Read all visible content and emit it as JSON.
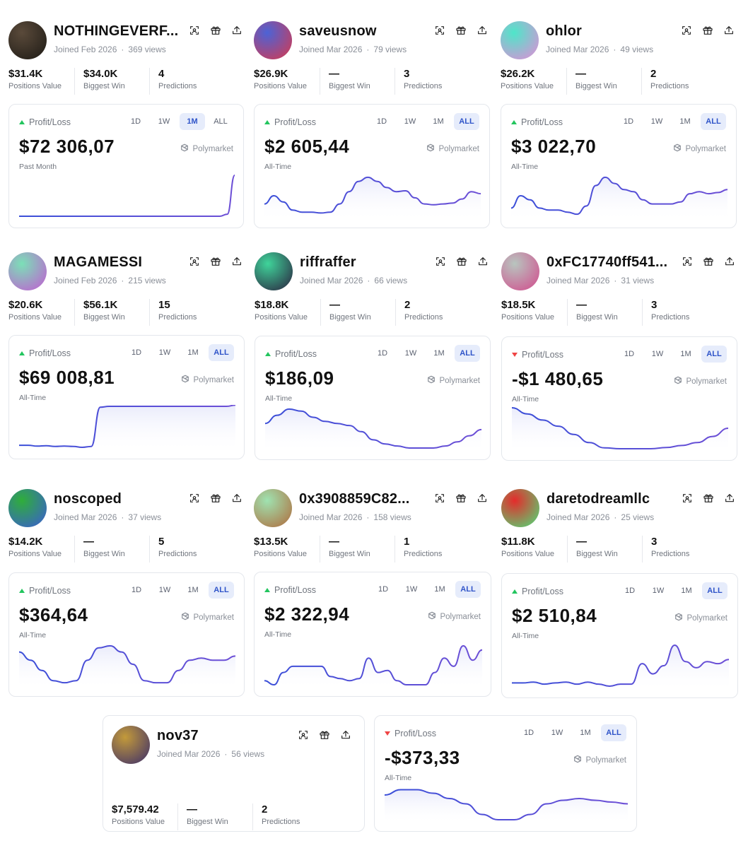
{
  "colors": {
    "line": "#6d4fd6",
    "area": "#e7e9fb",
    "up": "#22c55e",
    "down": "#ef4444",
    "active_tab_bg": "#e6ecfb",
    "active_tab_text": "#2f54c9"
  },
  "tab_labels": [
    "1D",
    "1W",
    "1M",
    "ALL"
  ],
  "profiles": [
    {
      "name": "NOTHINGEVERF...",
      "joined": "Joined Feb 2026",
      "views": "369 views",
      "avatar_colors": [
        "#5a4a3a",
        "#1d1a15"
      ],
      "stats": {
        "positions_value": "$31.4K",
        "positions_label": "Positions Value",
        "biggest_win": "$34.0K",
        "biggest_label": "Biggest Win",
        "predictions": "4",
        "predictions_label": "Predictions"
      },
      "card": {
        "pl_label": "Profit/Loss",
        "trend": "up",
        "amount": "$72 306,07",
        "period": "Past Month",
        "brand": "Polymarket",
        "active_tab": "1M",
        "series": [
          0,
          0,
          0,
          0,
          0,
          0,
          0,
          0,
          0,
          0,
          0,
          0,
          0,
          0,
          0,
          0,
          0,
          0,
          0,
          0,
          0,
          0,
          0,
          0,
          0,
          0,
          0,
          0,
          0.05,
          1
        ],
        "fill": false
      }
    },
    {
      "name": "saveusnow",
      "joined": "Joined Mar 2026",
      "views": "79 views",
      "avatar_colors": [
        "#4c63d6",
        "#d9384c"
      ],
      "stats": {
        "positions_value": "$26.9K",
        "positions_label": "Positions Value",
        "biggest_win": "—",
        "biggest_label": "Biggest Win",
        "predictions": "3",
        "predictions_label": "Predictions"
      },
      "card": {
        "pl_label": "Profit/Loss",
        "trend": "up",
        "amount": "$2 605,44",
        "period": "All-Time",
        "brand": "Polymarket",
        "active_tab": "ALL",
        "series": [
          0.3,
          0.5,
          0.35,
          0.15,
          0.1,
          0.1,
          0.08,
          0.1,
          0.3,
          0.6,
          0.85,
          0.95,
          0.85,
          0.7,
          0.6,
          0.62,
          0.45,
          0.3,
          0.28,
          0.3,
          0.32,
          0.42,
          0.6,
          0.55
        ],
        "fill": true
      }
    },
    {
      "name": "ohlor",
      "joined": "Joined Mar 2026",
      "views": "49 views",
      "avatar_colors": [
        "#4ee6c9",
        "#e58ad7"
      ],
      "stats": {
        "positions_value": "$26.2K",
        "positions_label": "Positions Value",
        "biggest_win": "—",
        "biggest_label": "Biggest Win",
        "predictions": "2",
        "predictions_label": "Predictions"
      },
      "card": {
        "pl_label": "Profit/Loss",
        "trend": "up",
        "amount": "$3 022,70",
        "period": "All-Time",
        "brand": "Polymarket",
        "active_tab": "ALL",
        "series": [
          0.2,
          0.5,
          0.4,
          0.2,
          0.15,
          0.15,
          0.1,
          0.05,
          0.25,
          0.75,
          0.95,
          0.8,
          0.65,
          0.6,
          0.4,
          0.3,
          0.3,
          0.3,
          0.35,
          0.55,
          0.6,
          0.55,
          0.58,
          0.65
        ],
        "fill": true
      }
    },
    {
      "name": "MAGAMESSI",
      "joined": "Joined Feb 2026",
      "views": "215 views",
      "avatar_colors": [
        "#7be0b7",
        "#c35ad3"
      ],
      "stats": {
        "positions_value": "$20.6K",
        "positions_label": "Positions Value",
        "biggest_win": "$56.1K",
        "biggest_label": "Biggest Win",
        "predictions": "15",
        "predictions_label": "Predictions"
      },
      "card": {
        "pl_label": "Profit/Loss",
        "trend": "up",
        "amount": "$69 008,81",
        "period": "All-Time",
        "brand": "Polymarket",
        "active_tab": "ALL",
        "series": [
          0.05,
          0.05,
          0.03,
          0.04,
          0.02,
          0.03,
          0.02,
          0.0,
          0.02,
          0.98,
          1,
          1,
          1,
          1,
          1,
          1,
          1,
          1,
          1,
          1,
          1,
          1,
          1,
          1,
          1.03
        ],
        "fill": true
      }
    },
    {
      "name": "riffraffer",
      "joined": "Joined Mar 2026",
      "views": "66 views",
      "avatar_colors": [
        "#3fd49a",
        "#2a1f3d"
      ],
      "stats": {
        "positions_value": "$18.8K",
        "positions_label": "Positions Value",
        "biggest_win": "—",
        "biggest_label": "Biggest Win",
        "predictions": "2",
        "predictions_label": "Predictions"
      },
      "card": {
        "pl_label": "Profit/Loss",
        "trend": "up",
        "amount": "$186,09",
        "period": "All-Time",
        "brand": "Polymarket",
        "active_tab": "ALL",
        "series": [
          0.6,
          0.8,
          0.95,
          0.9,
          0.75,
          0.65,
          0.6,
          0.55,
          0.4,
          0.2,
          0.1,
          0.05,
          0.0,
          0.0,
          0.0,
          0.05,
          0.15,
          0.3,
          0.45
        ],
        "fill": true
      }
    },
    {
      "name": "0xFC17740ff541...",
      "joined": "Joined Mar 2026",
      "views": "31 views",
      "avatar_colors": [
        "#b8c5bf",
        "#d24a8c"
      ],
      "stats": {
        "positions_value": "$18.5K",
        "positions_label": "Positions Value",
        "biggest_win": "—",
        "biggest_label": "Biggest Win",
        "predictions": "3",
        "predictions_label": "Predictions"
      },
      "card": {
        "pl_label": "Profit/Loss",
        "trend": "down",
        "amount": "-$1 480,65",
        "period": "All-Time",
        "brand": "Polymarket",
        "active_tab": "ALL",
        "series": [
          1,
          0.85,
          0.7,
          0.55,
          0.35,
          0.15,
          0.02,
          0.0,
          0.0,
          0.0,
          0.03,
          0.08,
          0.15,
          0.3,
          0.5
        ],
        "fill": true
      }
    },
    {
      "name": "noscoped",
      "joined": "Joined Mar 2026",
      "views": "37 views",
      "avatar_colors": [
        "#2fae3a",
        "#3b5bd6"
      ],
      "stats": {
        "positions_value": "$14.2K",
        "positions_label": "Positions Value",
        "biggest_win": "—",
        "biggest_label": "Biggest Win",
        "predictions": "5",
        "predictions_label": "Predictions"
      },
      "card": {
        "pl_label": "Profit/Loss",
        "trend": "up",
        "amount": "$364,64",
        "period": "All-Time",
        "brand": "Polymarket",
        "active_tab": "ALL",
        "series": [
          0.8,
          0.6,
          0.35,
          0.1,
          0.05,
          0.1,
          0.6,
          0.9,
          0.95,
          0.8,
          0.5,
          0.1,
          0.05,
          0.05,
          0.35,
          0.6,
          0.65,
          0.6,
          0.6,
          0.7
        ],
        "fill": true
      }
    },
    {
      "name": "0x3908859C82...",
      "joined": "Joined Mar 2026",
      "views": "158 views",
      "avatar_colors": [
        "#9fe3b1",
        "#b06a3a"
      ],
      "stats": {
        "positions_value": "$13.5K",
        "positions_label": "Positions Value",
        "biggest_win": "—",
        "biggest_label": "Biggest Win",
        "predictions": "1",
        "predictions_label": "Predictions"
      },
      "card": {
        "pl_label": "Profit/Loss",
        "trend": "up",
        "amount": "$2 322,94",
        "period": "All-Time",
        "brand": "Polymarket",
        "active_tab": "ALL",
        "series": [
          0.1,
          0.0,
          0.3,
          0.45,
          0.45,
          0.45,
          0.45,
          0.2,
          0.15,
          0.1,
          0.15,
          0.65,
          0.3,
          0.35,
          0.1,
          0.0,
          0.0,
          0.0,
          0.3,
          0.65,
          0.45,
          0.95,
          0.6,
          0.85
        ],
        "fill": true
      }
    },
    {
      "name": "daretodreamllc",
      "joined": "Joined Mar 2026",
      "views": "25 views",
      "avatar_colors": [
        "#e52b2b",
        "#4be07a"
      ],
      "stats": {
        "positions_value": "$11.8K",
        "positions_label": "Positions Value",
        "biggest_win": "—",
        "biggest_label": "Biggest Win",
        "predictions": "3",
        "predictions_label": "Predictions"
      },
      "card": {
        "pl_label": "Profit/Loss",
        "trend": "up",
        "amount": "$2 510,84",
        "period": "All-Time",
        "brand": "Polymarket",
        "active_tab": "ALL",
        "series": [
          0.08,
          0.08,
          0.1,
          0.05,
          0.08,
          0.1,
          0.05,
          0.1,
          0.05,
          0.0,
          0.05,
          0.05,
          0.55,
          0.3,
          0.5,
          1,
          0.6,
          0.45,
          0.6,
          0.55,
          0.65
        ],
        "fill": true
      }
    },
    {
      "name": "nov37",
      "joined": "Joined Mar 2026",
      "views": "56 views",
      "avatar_colors": [
        "#c39a3a",
        "#3b2d6b"
      ],
      "stats": {
        "positions_value": "$7,579.42",
        "positions_label": "Positions Value",
        "biggest_win": "—",
        "biggest_label": "Biggest Win",
        "predictions": "2",
        "predictions_label": "Predictions"
      },
      "card": {
        "pl_label": "Profit/Loss",
        "trend": "down",
        "amount": "-$373,33",
        "period": "All-Time",
        "brand": "Polymarket",
        "active_tab": "ALL",
        "series": [
          0.7,
          0.85,
          0.85,
          0.75,
          0.6,
          0.45,
          0.15,
          0.0,
          0.0,
          0.15,
          0.45,
          0.55,
          0.6,
          0.55,
          0.5,
          0.45
        ],
        "fill": true
      }
    }
  ]
}
